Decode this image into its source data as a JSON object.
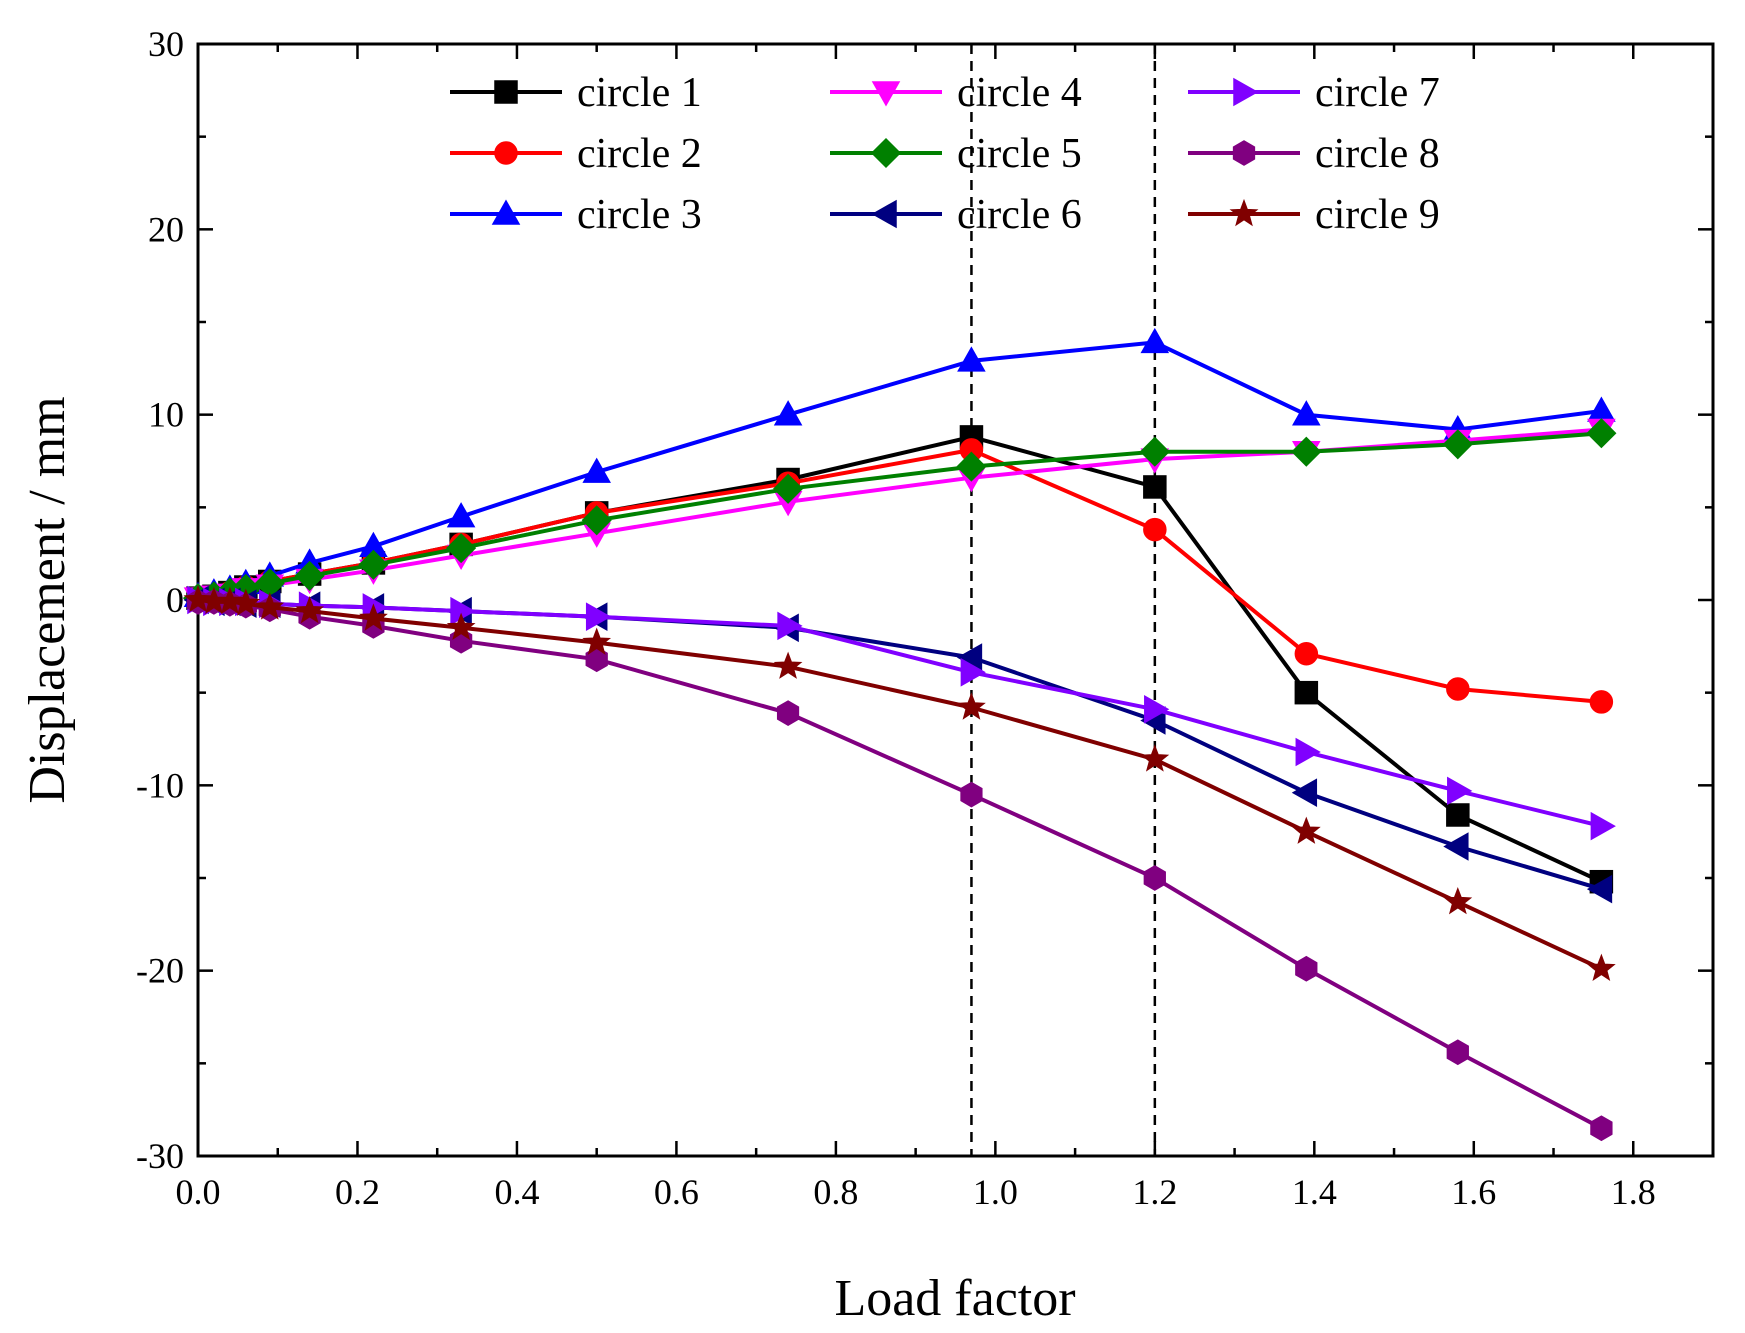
{
  "chart_data": {
    "type": "line",
    "title": "",
    "xlabel": "Load factor",
    "ylabel": "Displacement / mm",
    "xlim": [
      0.0,
      1.9
    ],
    "ylim": [
      -30,
      30
    ],
    "xticks": [
      0.0,
      0.2,
      0.4,
      0.6,
      0.8,
      1.0,
      1.2,
      1.4,
      1.6,
      1.8
    ],
    "xtick_labels": [
      "0.0",
      "0.2",
      "0.4",
      "0.6",
      "0.8",
      "1.0",
      "1.2",
      "1.4",
      "1.6",
      "1.8"
    ],
    "yticks": [
      -30,
      -20,
      -10,
      0,
      10,
      20,
      30
    ],
    "ytick_labels": [
      "-30",
      "-20",
      "-10",
      "0",
      "10",
      "20",
      "30"
    ],
    "grid": false,
    "legend_position": "top",
    "reference_lines": [
      {
        "x": 0.97,
        "style": "dashed"
      },
      {
        "x": 1.2,
        "style": "dashed"
      }
    ],
    "x": [
      0.0,
      0.02,
      0.04,
      0.06,
      0.09,
      0.14,
      0.22,
      0.33,
      0.5,
      0.74,
      0.97,
      1.2,
      1.39,
      1.58,
      1.76
    ],
    "series": [
      {
        "name": "circle 1",
        "color": "#000000",
        "marker": "square",
        "values": [
          0.1,
          0.2,
          0.4,
          0.7,
          1.0,
          1.4,
          2.0,
          3.0,
          4.7,
          6.5,
          8.8,
          6.1,
          -5.0,
          -11.6,
          -15.2
        ]
      },
      {
        "name": "circle 2",
        "color": "#ff0000",
        "marker": "circle",
        "values": [
          0.1,
          0.2,
          0.4,
          0.7,
          1.0,
          1.4,
          2.0,
          3.0,
          4.7,
          6.3,
          8.1,
          3.8,
          -2.9,
          -4.8,
          -5.5
        ]
      },
      {
        "name": "circle 3",
        "color": "#0000ff",
        "marker": "triangle-up",
        "values": [
          0.2,
          0.4,
          0.6,
          0.9,
          1.3,
          2.0,
          2.9,
          4.5,
          6.9,
          10.0,
          12.9,
          13.9,
          10.0,
          9.2,
          10.2
        ]
      },
      {
        "name": "circle 4",
        "color": "#ff00ff",
        "marker": "triangle-down",
        "values": [
          0.1,
          0.2,
          0.3,
          0.6,
          0.8,
          1.1,
          1.6,
          2.4,
          3.6,
          5.3,
          6.6,
          7.6,
          8.0,
          8.6,
          9.2
        ]
      },
      {
        "name": "circle 5",
        "color": "#008000",
        "marker": "diamond",
        "values": [
          0.1,
          0.2,
          0.4,
          0.6,
          0.9,
          1.3,
          1.9,
          2.8,
          4.3,
          6.0,
          7.2,
          8.0,
          8.0,
          8.4,
          9.0
        ]
      },
      {
        "name": "circle 6",
        "color": "#000080",
        "marker": "triangle-left",
        "values": [
          0.0,
          -0.1,
          -0.1,
          -0.2,
          -0.2,
          -0.3,
          -0.4,
          -0.6,
          -0.9,
          -1.5,
          -3.1,
          -6.5,
          -10.4,
          -13.3,
          -15.6
        ]
      },
      {
        "name": "circle 7",
        "color": "#8000ff",
        "marker": "triangle-right",
        "values": [
          0.0,
          -0.1,
          -0.1,
          -0.1,
          -0.2,
          -0.3,
          -0.4,
          -0.6,
          -0.9,
          -1.4,
          -3.9,
          -5.9,
          -8.2,
          -10.3,
          -12.2
        ]
      },
      {
        "name": "circle 8",
        "color": "#800080",
        "marker": "hexagon",
        "values": [
          -0.1,
          -0.1,
          -0.2,
          -0.3,
          -0.5,
          -0.9,
          -1.4,
          -2.2,
          -3.2,
          -6.1,
          -10.5,
          -15.0,
          -19.9,
          -24.4,
          -28.5
        ]
      },
      {
        "name": "circle 9",
        "color": "#800000",
        "marker": "star",
        "values": [
          0.0,
          -0.1,
          -0.1,
          -0.2,
          -0.4,
          -0.6,
          -1.0,
          -1.5,
          -2.3,
          -3.6,
          -5.8,
          -8.6,
          -12.5,
          -16.3,
          -19.9
        ]
      }
    ]
  }
}
